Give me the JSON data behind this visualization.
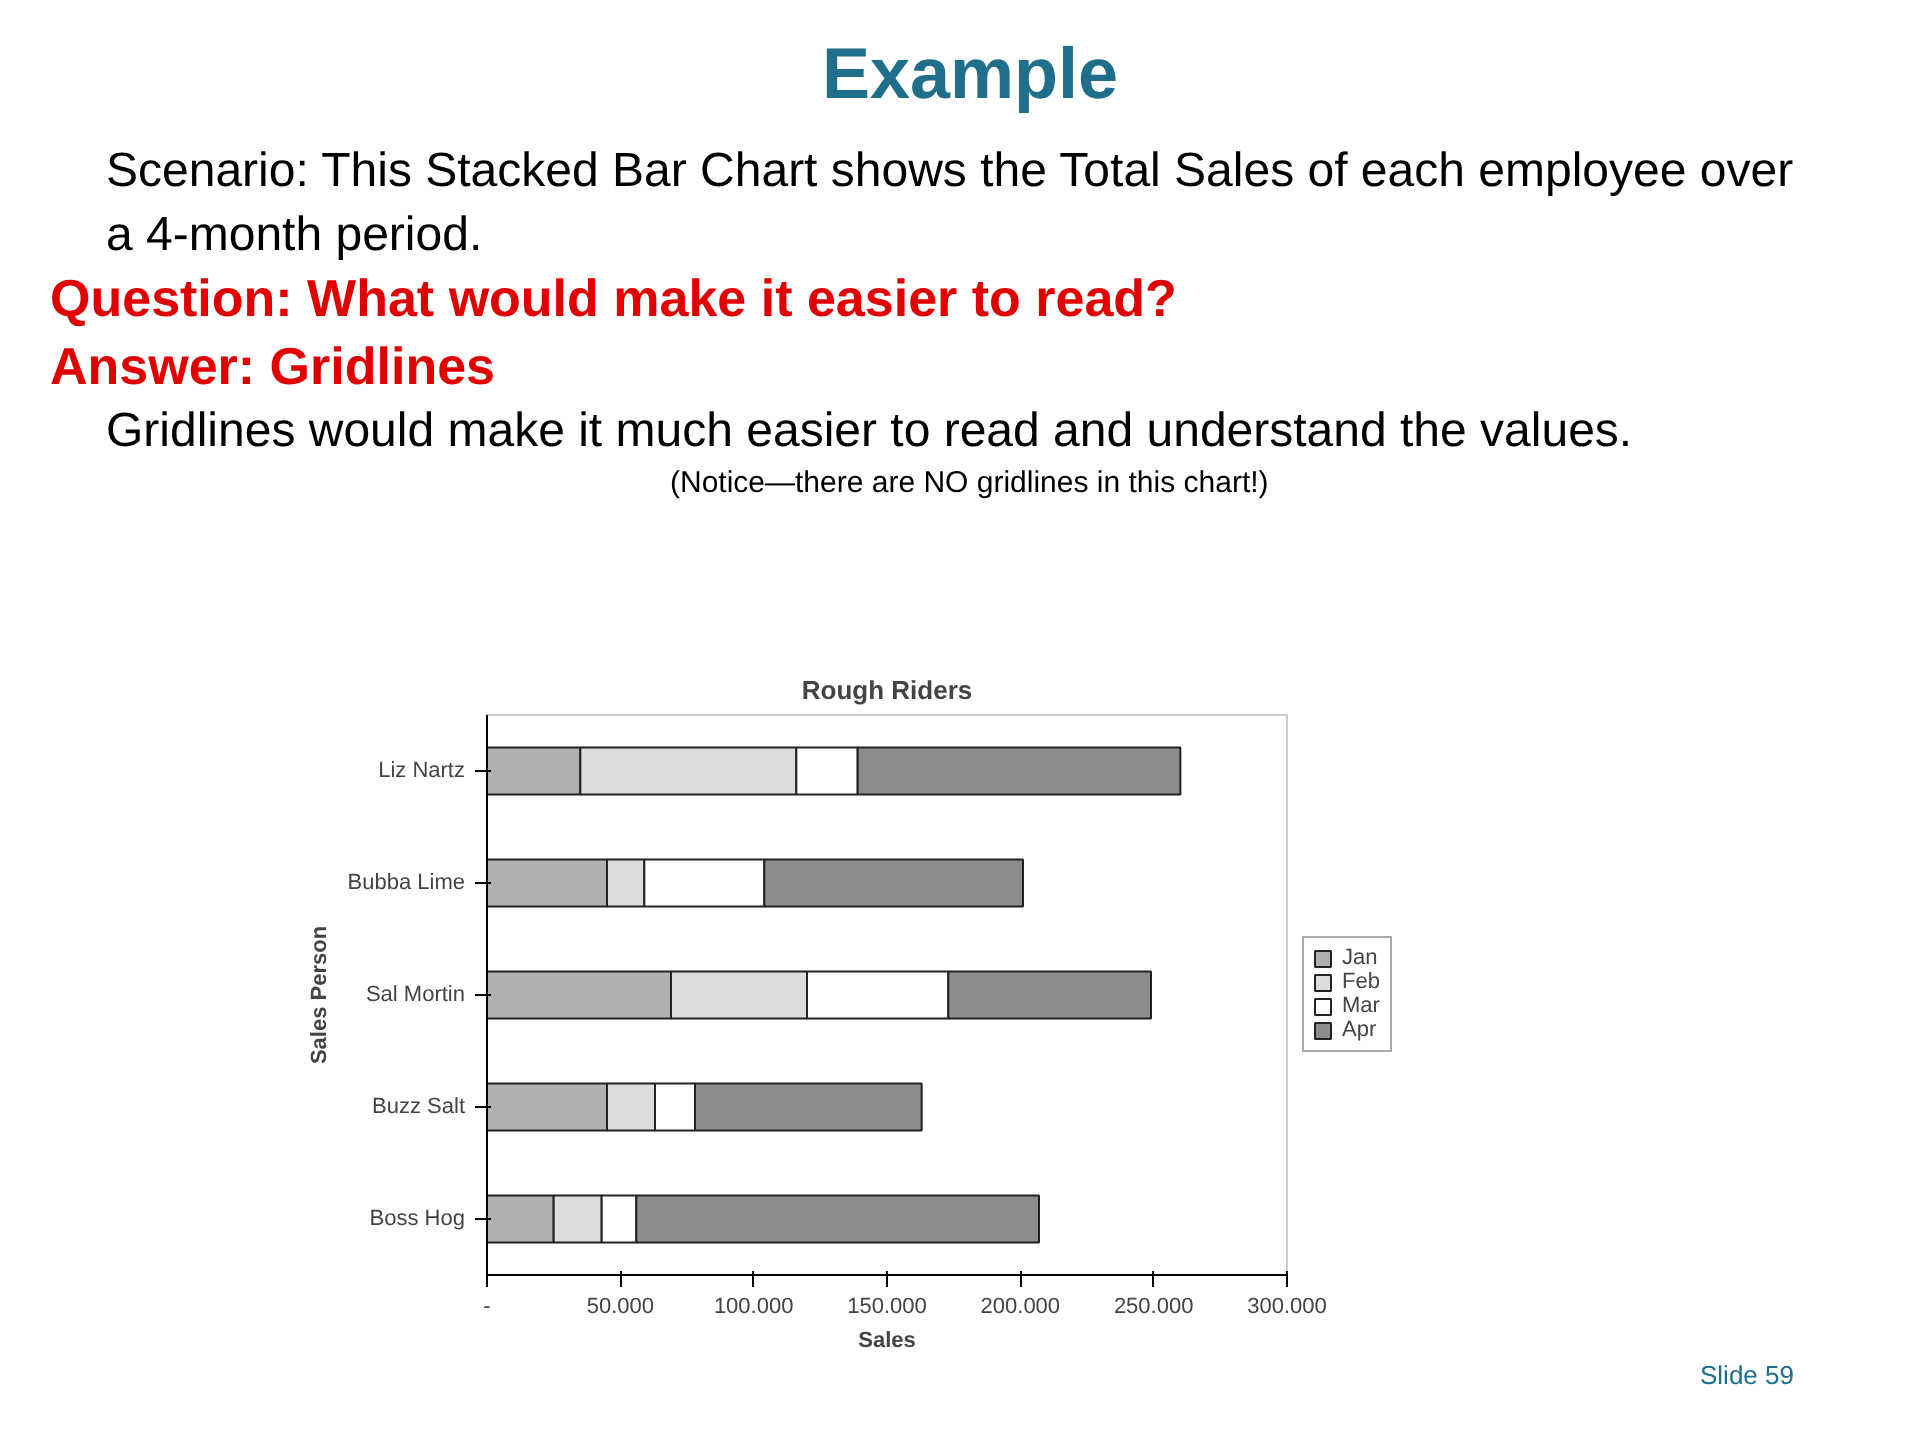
{
  "chart_data": {
    "type": "bar",
    "orientation": "horizontal",
    "stacked": true,
    "title": "Rough Riders",
    "xlabel": "Sales",
    "ylabel": "Sales Person",
    "categories": [
      "Liz Nartz",
      "Bubba Lime",
      "Sal Mortin",
      "Buzz Salt",
      "Boss Hog"
    ],
    "series": [
      {
        "name": "Jan",
        "color": "#b0b0b0",
        "values": [
          35000,
          45000,
          69000,
          45000,
          25000
        ]
      },
      {
        "name": "Feb",
        "color": "#dcdcdc",
        "values": [
          81000,
          14000,
          51000,
          18000,
          18000
        ]
      },
      {
        "name": "Mar",
        "color": "#ffffff",
        "values": [
          23000,
          45000,
          53000,
          15000,
          13000
        ]
      },
      {
        "name": "Apr",
        "color": "#8c8c8c",
        "values": [
          121000,
          97000,
          76000,
          85000,
          151000
        ]
      }
    ],
    "xlim": [
      0,
      300000
    ],
    "xticks": [
      {
        "value": 0,
        "label": "-"
      },
      {
        "value": 50000,
        "label": "50.000"
      },
      {
        "value": 100000,
        "label": "100.000"
      },
      {
        "value": 150000,
        "label": "150.000"
      },
      {
        "value": 200000,
        "label": "200.000"
      },
      {
        "value": 250000,
        "label": "250.000"
      },
      {
        "value": 300000,
        "label": "300.000"
      }
    ],
    "grid": false,
    "legend": "right",
    "annotations": [
      "Example",
      "Scenario: This Stacked Bar Chart shows the Total Sales of each employee over a 4-month period.",
      "Question: What would make it easier to read?",
      "Answer: Gridlines",
      "Gridlines would make it much easier to read and understand the values.",
      "(Notice—there are NO gridlines in this chart!)",
      "Slide 59"
    ]
  }
}
